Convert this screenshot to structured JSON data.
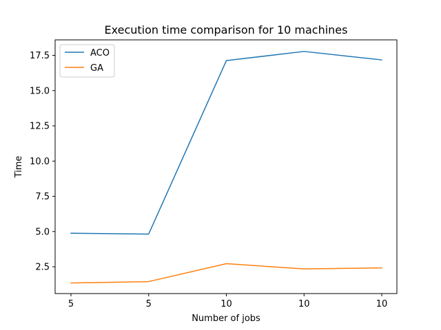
{
  "chart_data": {
    "type": "line",
    "title": "Execution time comparison for 10 machines",
    "xlabel": "Number of jobs",
    "ylabel": "Time",
    "categories": [
      "5",
      "5",
      "10",
      "10",
      "10"
    ],
    "ylim": [
      0.6,
      18.6
    ],
    "yticks": [
      2.5,
      5.0,
      7.5,
      10.0,
      12.5,
      15.0,
      17.5
    ],
    "ytick_labels": [
      "2.5",
      "5.0",
      "7.5",
      "10.0",
      "12.5",
      "15.0",
      "17.5"
    ],
    "grid": false,
    "legend_position": "top-left",
    "series": [
      {
        "name": "ACO",
        "color": "#1f77b4",
        "values": [
          4.88,
          4.82,
          17.13,
          17.78,
          17.18
        ]
      },
      {
        "name": "GA",
        "color": "#ff7f0e",
        "values": [
          1.35,
          1.45,
          2.72,
          2.35,
          2.42
        ]
      }
    ]
  }
}
